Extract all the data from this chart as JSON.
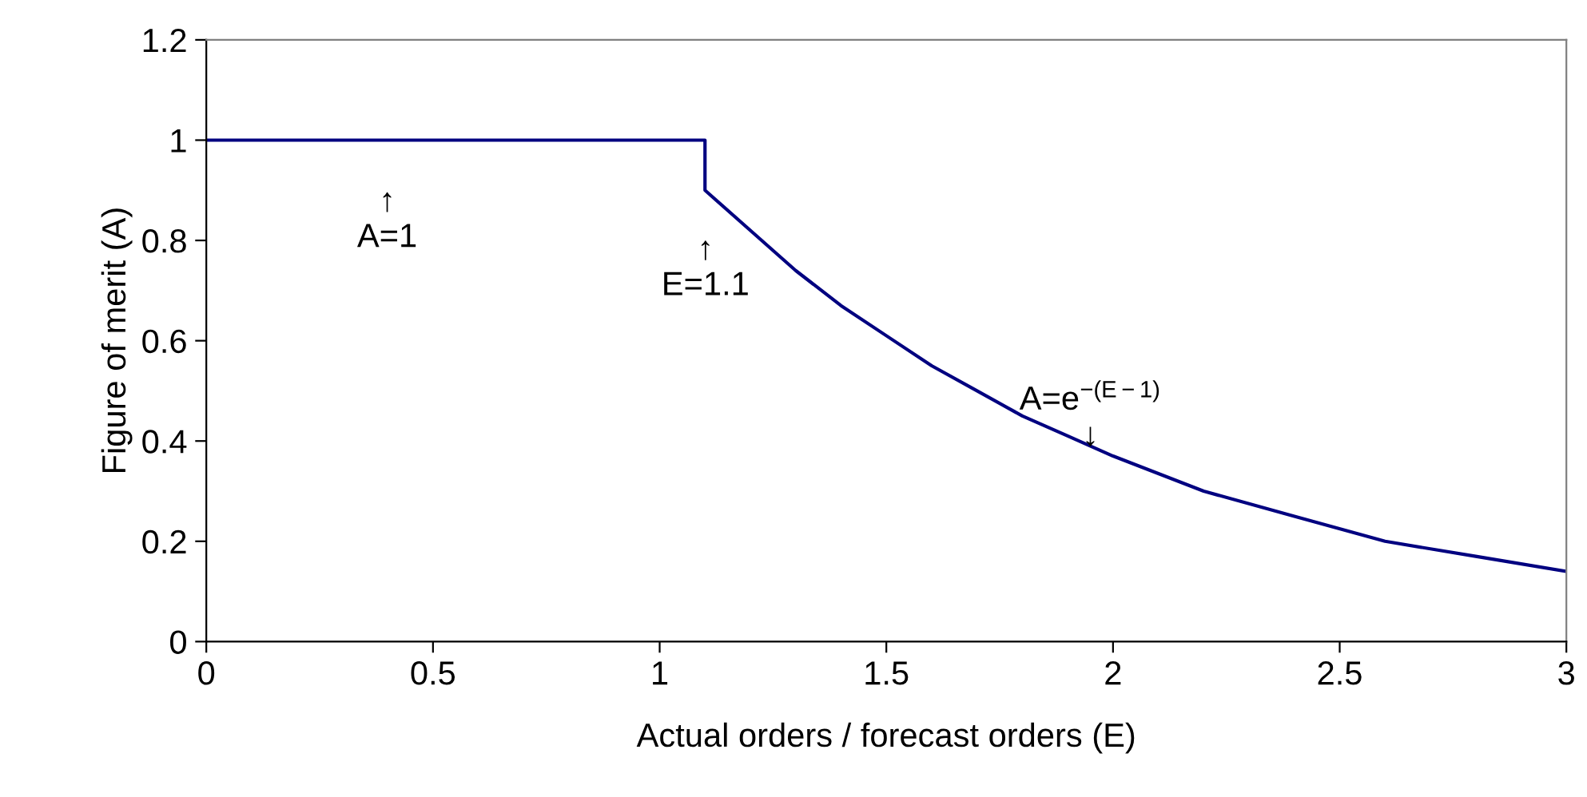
{
  "chart_data": {
    "type": "line",
    "xlabel": "Actual orders / forecast orders (E)",
    "ylabel": "Figure of merit (A)",
    "series": [
      {
        "color": "#000080",
        "x": [
          0,
          1.1,
          1.1,
          1.2,
          1.3,
          1.4,
          1.5,
          1.6,
          1.7,
          1.8,
          1.9,
          2.0,
          2.2,
          2.4,
          2.6,
          2.8,
          3.0
        ],
        "values": [
          1,
          1,
          0.9,
          0.82,
          0.74,
          0.67,
          0.61,
          0.55,
          0.5,
          0.45,
          0.41,
          0.37,
          0.3,
          0.25,
          0.2,
          0.17,
          0.14
        ]
      }
    ],
    "xlim": [
      0,
      3
    ],
    "xticks": [
      0,
      0.5,
      1,
      1.5,
      2,
      2.5,
      3
    ],
    "ylim": [
      0,
      1.2
    ],
    "yticks": [
      0,
      0.2,
      0.4,
      0.6,
      0.8,
      1,
      1.2
    ],
    "annotations": [
      "↑\nA=1",
      "↑\nE=1.1",
      "A=e$^{−(E−1)}$\n↓"
    ],
    "grid": false,
    "marker": "none",
    "line_style": "solid"
  }
}
